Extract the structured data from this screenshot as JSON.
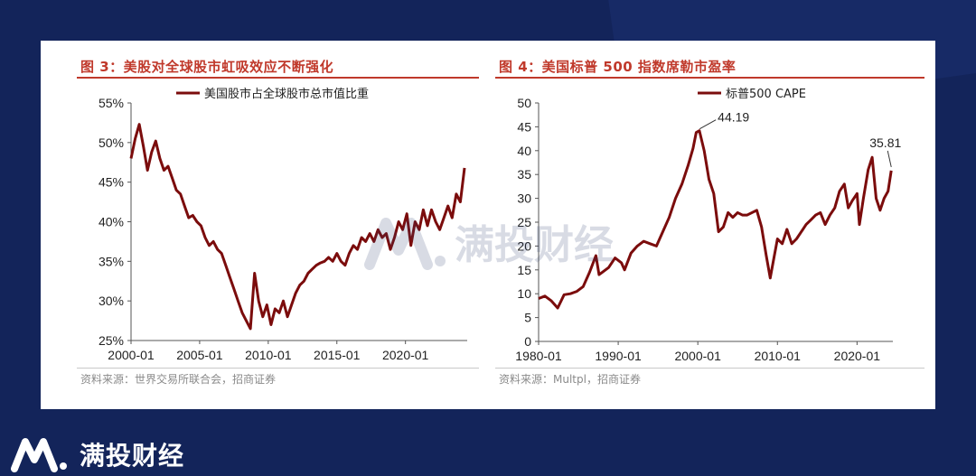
{
  "brand": {
    "name": "满投财经",
    "logo_icon": "mt-logo-icon"
  },
  "watermark": {
    "text": "满投财经"
  },
  "chart_data": [
    {
      "type": "line",
      "title": "图 3：美股对全球股市虹吸效应不断强化",
      "legend": "美国股市占全球股市总市值比重",
      "legend_position": "top",
      "source": "资料来源：世界交易所联合会，招商证券",
      "color": "#7b0c0c",
      "xlim": [
        2000,
        2024.5
      ],
      "ylim": [
        25,
        55
      ],
      "yticks": [
        25,
        30,
        35,
        40,
        45,
        50,
        55
      ],
      "ytick_labels": [
        "25%",
        "30%",
        "35%",
        "40%",
        "45%",
        "50%",
        "55%"
      ],
      "xtick_values": [
        2000,
        2005,
        2010,
        2015,
        2020
      ],
      "xtick_labels": [
        "2000-01",
        "2005-01",
        "2010-01",
        "2015-01",
        "2020-01"
      ],
      "x": [
        2000.0,
        2000.3,
        2000.6,
        2000.9,
        2001.2,
        2001.5,
        2001.8,
        2002.1,
        2002.4,
        2002.7,
        2003.0,
        2003.3,
        2003.6,
        2003.9,
        2004.2,
        2004.5,
        2004.8,
        2005.1,
        2005.4,
        2005.7,
        2006.0,
        2006.3,
        2006.6,
        2006.9,
        2007.2,
        2007.5,
        2007.8,
        2008.1,
        2008.4,
        2008.7,
        2009.0,
        2009.3,
        2009.6,
        2009.9,
        2010.2,
        2010.5,
        2010.8,
        2011.1,
        2011.4,
        2011.7,
        2012.0,
        2012.3,
        2012.6,
        2012.9,
        2013.2,
        2013.5,
        2013.8,
        2014.1,
        2014.4,
        2014.7,
        2015.0,
        2015.3,
        2015.6,
        2015.9,
        2016.2,
        2016.5,
        2016.8,
        2017.1,
        2017.4,
        2017.7,
        2018.0,
        2018.3,
        2018.6,
        2018.9,
        2019.2,
        2019.5,
        2019.8,
        2020.1,
        2020.4,
        2020.7,
        2021.0,
        2021.3,
        2021.6,
        2021.9,
        2022.2,
        2022.5,
        2022.8,
        2023.1,
        2023.4,
        2023.7,
        2024.0,
        2024.3
      ],
      "y": [
        48.0,
        50.5,
        52.3,
        49.5,
        46.5,
        48.8,
        50.2,
        48.0,
        46.5,
        47.0,
        45.5,
        44.0,
        43.5,
        42.0,
        40.5,
        40.8,
        40.0,
        39.5,
        38.0,
        37.0,
        37.5,
        36.5,
        36.0,
        34.5,
        33.0,
        31.5,
        30.0,
        28.5,
        27.5,
        26.5,
        33.5,
        30.0,
        28.0,
        29.5,
        27.0,
        29.0,
        28.5,
        30.0,
        28.0,
        29.5,
        31.0,
        32.0,
        32.5,
        33.5,
        34.0,
        34.5,
        34.8,
        35.0,
        35.5,
        35.0,
        36.0,
        35.0,
        34.5,
        36.0,
        37.0,
        36.5,
        38.0,
        37.5,
        38.5,
        37.5,
        39.0,
        38.0,
        38.5,
        36.5,
        38.0,
        40.0,
        39.0,
        41.0,
        37.0,
        40.0,
        39.0,
        41.5,
        39.5,
        41.5,
        40.0,
        39.0,
        40.5,
        42.0,
        40.5,
        43.5,
        42.5,
        46.8
      ]
    },
    {
      "type": "line",
      "title": "图 4：美国标普 500 指数席勒市盈率",
      "legend": "标普500 CAPE",
      "legend_position": "top",
      "source": "资料来源：Multpl，招商证券",
      "color": "#7b0c0c",
      "xlim": [
        1980,
        2024.5
      ],
      "ylim": [
        0,
        50
      ],
      "yticks": [
        0,
        5,
        10,
        15,
        20,
        25,
        30,
        35,
        40,
        45,
        50
      ],
      "ytick_labels": [
        "0",
        "5",
        "10",
        "15",
        "20",
        "25",
        "30",
        "35",
        "40",
        "45",
        "50"
      ],
      "xtick_values": [
        1980,
        1990,
        2000,
        2010,
        2020
      ],
      "xtick_labels": [
        "1980-01",
        "1990-01",
        "2000-01",
        "2010-01",
        "2020-01"
      ],
      "annotations": [
        {
          "x": 2000.0,
          "y": 44.19,
          "text": "44.19"
        },
        {
          "x": 2024.3,
          "y": 35.81,
          "text": "35.81"
        }
      ],
      "x": [
        1980.0,
        1980.8,
        1981.6,
        1982.4,
        1983.2,
        1984.0,
        1984.8,
        1985.6,
        1986.4,
        1987.2,
        1987.6,
        1988.0,
        1988.8,
        1989.6,
        1990.4,
        1990.8,
        1991.6,
        1992.4,
        1993.2,
        1994.0,
        1994.8,
        1995.6,
        1996.4,
        1997.2,
        1998.0,
        1998.8,
        1999.4,
        1999.8,
        2000.2,
        2000.8,
        2001.4,
        2002.0,
        2002.6,
        2003.2,
        2003.8,
        2004.4,
        2005.0,
        2005.6,
        2006.2,
        2006.8,
        2007.4,
        2008.0,
        2008.6,
        2009.1,
        2009.5,
        2010.0,
        2010.6,
        2011.2,
        2011.8,
        2012.4,
        2013.0,
        2013.6,
        2014.2,
        2014.8,
        2015.4,
        2016.0,
        2016.6,
        2017.2,
        2017.8,
        2018.4,
        2018.9,
        2019.4,
        2020.0,
        2020.3,
        2020.8,
        2021.4,
        2021.9,
        2022.4,
        2022.9,
        2023.4,
        2023.9,
        2024.3
      ],
      "y": [
        9.0,
        9.5,
        8.5,
        7.0,
        9.8,
        10.0,
        10.5,
        11.5,
        14.5,
        18.0,
        14.0,
        14.5,
        15.5,
        17.5,
        16.5,
        15.0,
        18.5,
        20.0,
        21.0,
        20.5,
        20.0,
        23.0,
        26.0,
        30.0,
        33.0,
        37.0,
        40.5,
        43.8,
        44.19,
        40.0,
        34.0,
        31.0,
        23.0,
        24.0,
        27.0,
        26.0,
        27.0,
        26.5,
        26.5,
        27.0,
        27.5,
        24.0,
        18.0,
        13.3,
        17.0,
        21.5,
        20.5,
        23.5,
        20.5,
        21.5,
        23.0,
        24.5,
        25.5,
        26.5,
        27.0,
        24.5,
        26.5,
        28.0,
        31.5,
        33.0,
        28.0,
        29.5,
        31.0,
        24.5,
        30.0,
        36.0,
        38.6,
        30.0,
        27.5,
        30.0,
        31.5,
        35.81
      ]
    }
  ]
}
